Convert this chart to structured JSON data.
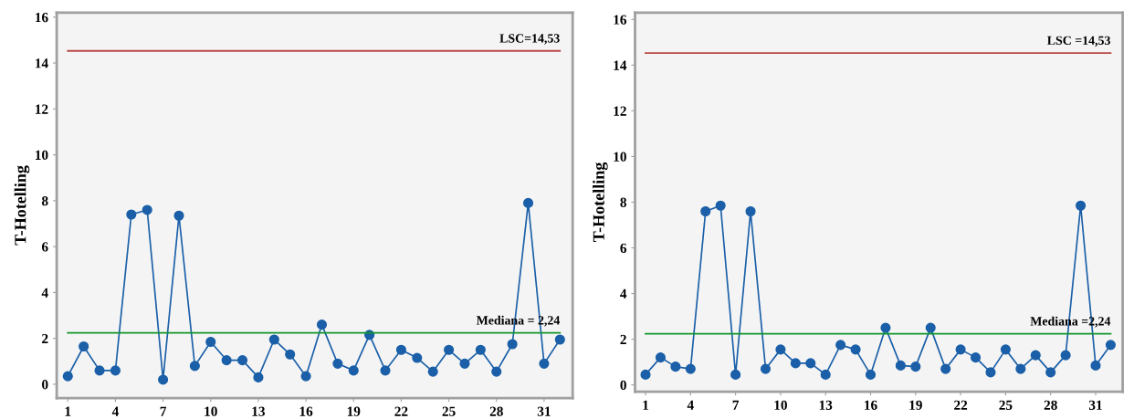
{
  "chart_data": [
    {
      "type": "line",
      "ylabel": "T-Hotelling",
      "x": [
        1,
        2,
        3,
        4,
        5,
        6,
        7,
        8,
        9,
        10,
        11,
        12,
        13,
        14,
        15,
        16,
        17,
        18,
        19,
        20,
        21,
        22,
        23,
        24,
        25,
        26,
        27,
        28,
        29,
        30,
        31,
        32
      ],
      "series": [
        {
          "color": "#1a5fa8",
          "values": [
            0.35,
            1.65,
            0.6,
            0.6,
            7.4,
            7.6,
            0.2,
            7.35,
            0.8,
            1.85,
            1.05,
            1.05,
            0.3,
            1.95,
            1.3,
            0.35,
            2.6,
            0.9,
            0.6,
            2.15,
            0.6,
            1.5,
            1.15,
            0.55,
            1.5,
            0.9,
            1.5,
            0.55,
            1.75,
            7.9,
            0.9,
            1.95
          ]
        }
      ],
      "xlim": [
        0.3,
        32.8
      ],
      "xticks": [
        1,
        4,
        7,
        10,
        13,
        16,
        19,
        22,
        25,
        28,
        31
      ],
      "ylim": [
        -0.6,
        16.2
      ],
      "yticks": [
        0,
        2,
        4,
        6,
        8,
        10,
        12,
        14,
        16
      ],
      "ref_lines": [
        {
          "axis": "y",
          "value": 14.53,
          "label": "LSC=14,53",
          "color": "#b94a48"
        },
        {
          "axis": "y",
          "value": 2.24,
          "label": "Mediana = 2,24",
          "color": "#12962a"
        }
      ],
      "marker": "circle",
      "grid": false
    },
    {
      "type": "line",
      "ylabel": "T-Hotelling",
      "x": [
        1,
        2,
        3,
        4,
        5,
        6,
        7,
        8,
        9,
        10,
        11,
        12,
        13,
        14,
        15,
        16,
        17,
        18,
        19,
        20,
        21,
        22,
        23,
        24,
        25,
        26,
        27,
        28,
        29,
        30,
        31,
        32
      ],
      "series": [
        {
          "color": "#1a5fa8",
          "values": [
            0.45,
            1.2,
            0.8,
            0.7,
            7.6,
            7.85,
            0.45,
            7.6,
            0.7,
            1.55,
            0.95,
            0.95,
            0.45,
            1.75,
            1.55,
            0.45,
            2.5,
            0.85,
            0.8,
            2.5,
            0.7,
            1.55,
            1.2,
            0.55,
            1.55,
            0.7,
            1.3,
            0.55,
            1.3,
            7.85,
            0.85,
            1.75
          ]
        }
      ],
      "xlim": [
        0.3,
        32.8
      ],
      "xticks": [
        1,
        4,
        7,
        10,
        13,
        16,
        19,
        22,
        25,
        28,
        31
      ],
      "ylim": [
        -0.3,
        16.3
      ],
      "yticks": [
        0,
        2,
        4,
        6,
        8,
        10,
        12,
        14,
        16
      ],
      "ref_lines": [
        {
          "axis": "y",
          "value": 14.53,
          "label": "LSC =14,53",
          "color": "#b94a48"
        },
        {
          "axis": "y",
          "value": 2.24,
          "label": "Mediana =2,24",
          "color": "#12962a"
        }
      ],
      "marker": "circle",
      "grid": false
    }
  ]
}
